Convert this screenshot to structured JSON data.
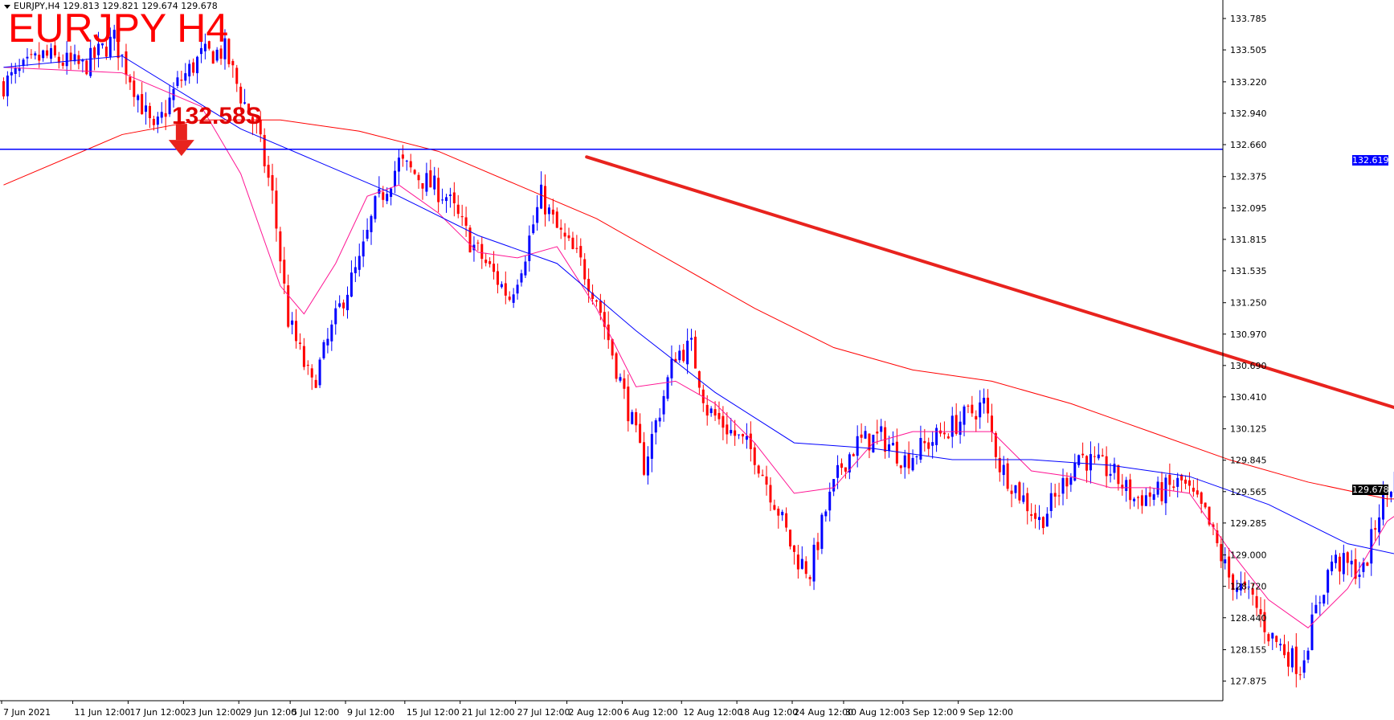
{
  "symbol_info": {
    "text": "EURJPY,H4  129.813 129.821 129.674 129.678"
  },
  "title": "EURJPY H4",
  "annotation": {
    "label": "132.58S",
    "arrow_color": "#e8231e"
  },
  "price_tags": {
    "level": "132.619",
    "last": "129.678"
  },
  "colors": {
    "bull": "#0000ff",
    "bear": "#ff0000",
    "level_line": "#0000ff",
    "ma_fast": "#ff1493",
    "ma_mid": "#0000ff",
    "ma_slow": "#ff0000",
    "trend_arrow": "#e8231e"
  },
  "chart_data": {
    "type": "candlestick",
    "symbol": "EURJPY",
    "timeframe": "H4",
    "ylim": [
      127.7,
      133.95
    ],
    "y_ticks": [
      "133.785",
      "133.505",
      "133.220",
      "132.940",
      "132.660",
      "132.375",
      "132.095",
      "131.815",
      "131.535",
      "131.250",
      "130.970",
      "130.690",
      "130.410",
      "130.125",
      "129.845",
      "129.565",
      "129.285",
      "129.000",
      "128.720",
      "128.440",
      "128.155",
      "127.875"
    ],
    "x_ticks": [
      "7 Jun 2021",
      "11 Jun 12:00",
      "17 Jun 12:00",
      "23 Jun 12:00",
      "29 Jun 12:00",
      "5 Jul 12:00",
      "9 Jul 12:00",
      "15 Jul 12:00",
      "21 Jul 12:00",
      "27 Jul 12:00",
      "2 Aug 12:00",
      "6 Aug 12:00",
      "12 Aug 12:00",
      "18 Aug 12:00",
      "24 Aug 12:00",
      "30 Aug 12:00",
      "3 Sep 12:00",
      "9 Sep 12:00"
    ],
    "horizontal_level": 132.619,
    "sell_level": 132.58,
    "last_price": 129.678,
    "last_candle": {
      "open": 129.813,
      "high": 129.821,
      "low": 129.674,
      "close": 129.678
    },
    "price_path": [
      [
        0,
        133.2
      ],
      [
        10,
        133.45
      ],
      [
        20,
        133.35
      ],
      [
        28,
        133.6
      ],
      [
        34,
        133.1
      ],
      [
        38,
        132.75
      ],
      [
        44,
        133.2
      ],
      [
        50,
        133.45
      ],
      [
        56,
        133.5
      ],
      [
        60,
        133.1
      ],
      [
        64,
        132.8
      ],
      [
        68,
        132.2
      ],
      [
        72,
        131.1
      ],
      [
        78,
        130.5
      ],
      [
        82,
        130.9
      ],
      [
        86,
        131.3
      ],
      [
        90,
        131.6
      ],
      [
        94,
        132.1
      ],
      [
        100,
        132.5
      ],
      [
        106,
        132.35
      ],
      [
        112,
        132.2
      ],
      [
        118,
        131.8
      ],
      [
        124,
        131.5
      ],
      [
        128,
        131.3
      ],
      [
        132,
        131.7
      ],
      [
        136,
        132.2
      ],
      [
        140,
        131.9
      ],
      [
        146,
        131.6
      ],
      [
        150,
        131.3
      ],
      [
        154,
        130.8
      ],
      [
        158,
        130.3
      ],
      [
        162,
        129.8
      ],
      [
        166,
        130.3
      ],
      [
        170,
        130.8
      ],
      [
        174,
        130.85
      ],
      [
        178,
        130.3
      ],
      [
        184,
        130.1
      ],
      [
        190,
        129.9
      ],
      [
        196,
        129.4
      ],
      [
        200,
        129.0
      ],
      [
        204,
        128.85
      ],
      [
        208,
        129.4
      ],
      [
        212,
        129.8
      ],
      [
        216,
        130.0
      ],
      [
        222,
        130.05
      ],
      [
        228,
        129.85
      ],
      [
        232,
        129.95
      ],
      [
        238,
        130.1
      ],
      [
        244,
        130.25
      ],
      [
        248,
        130.35
      ],
      [
        252,
        129.8
      ],
      [
        256,
        129.6
      ],
      [
        262,
        129.3
      ],
      [
        266,
        129.5
      ],
      [
        272,
        129.9
      ],
      [
        276,
        129.8
      ],
      [
        280,
        129.75
      ],
      [
        286,
        129.5
      ],
      [
        292,
        129.55
      ],
      [
        298,
        129.65
      ],
      [
        304,
        129.35
      ],
      [
        310,
        128.8
      ],
      [
        316,
        128.6
      ],
      [
        320,
        128.3
      ],
      [
        324,
        128.15
      ],
      [
        328,
        128.0
      ],
      [
        332,
        128.5
      ],
      [
        336,
        128.95
      ],
      [
        340,
        128.9
      ],
      [
        344,
        128.85
      ],
      [
        348,
        129.4
      ],
      [
        352,
        129.7
      ],
      [
        356,
        129.5
      ],
      [
        360,
        129.65
      ],
      [
        364,
        129.75
      ],
      [
        368,
        130.0
      ],
      [
        372,
        130.3
      ],
      [
        376,
        130.45
      ],
      [
        380,
        130.5
      ],
      [
        384,
        130.6
      ],
      [
        388,
        130.35
      ],
      [
        392,
        130.4
      ],
      [
        396,
        130.5
      ],
      [
        400,
        130.6
      ],
      [
        404,
        130.25
      ],
      [
        408,
        130.15
      ],
      [
        412,
        129.95
      ],
      [
        416,
        129.75
      ],
      [
        418,
        130.2
      ],
      [
        422,
        129.9
      ],
      [
        425,
        129.68
      ]
    ],
    "moving_averages": [
      {
        "name": "MA fast",
        "points": [
          [
            0,
            133.35
          ],
          [
            30,
            133.3
          ],
          [
            50,
            133.0
          ],
          [
            60,
            132.4
          ],
          [
            70,
            131.4
          ],
          [
            76,
            131.15
          ],
          [
            84,
            131.6
          ],
          [
            92,
            132.2
          ],
          [
            100,
            132.3
          ],
          [
            110,
            132.05
          ],
          [
            120,
            131.7
          ],
          [
            130,
            131.65
          ],
          [
            140,
            131.75
          ],
          [
            150,
            131.2
          ],
          [
            160,
            130.5
          ],
          [
            170,
            130.55
          ],
          [
            180,
            130.35
          ],
          [
            190,
            130.0
          ],
          [
            200,
            129.55
          ],
          [
            210,
            129.6
          ],
          [
            220,
            130.0
          ],
          [
            230,
            130.1
          ],
          [
            240,
            130.1
          ],
          [
            250,
            130.1
          ],
          [
            260,
            129.75
          ],
          [
            270,
            129.7
          ],
          [
            280,
            129.6
          ],
          [
            290,
            129.6
          ],
          [
            300,
            129.55
          ],
          [
            310,
            129.05
          ],
          [
            320,
            128.6
          ],
          [
            330,
            128.35
          ],
          [
            340,
            128.7
          ],
          [
            350,
            129.3
          ],
          [
            360,
            129.55
          ],
          [
            370,
            129.85
          ],
          [
            380,
            130.35
          ],
          [
            390,
            130.45
          ],
          [
            400,
            130.5
          ],
          [
            410,
            130.3
          ],
          [
            420,
            130.05
          ]
        ]
      },
      {
        "name": "MA mid",
        "points": [
          [
            0,
            133.35
          ],
          [
            30,
            133.45
          ],
          [
            60,
            132.8
          ],
          [
            80,
            132.5
          ],
          [
            100,
            132.2
          ],
          [
            120,
            131.85
          ],
          [
            140,
            131.6
          ],
          [
            160,
            131.0
          ],
          [
            180,
            130.45
          ],
          [
            200,
            130.0
          ],
          [
            220,
            129.95
          ],
          [
            240,
            129.85
          ],
          [
            260,
            129.85
          ],
          [
            280,
            129.8
          ],
          [
            300,
            129.7
          ],
          [
            320,
            129.45
          ],
          [
            340,
            129.1
          ],
          [
            360,
            128.95
          ],
          [
            375,
            128.95
          ],
          [
            390,
            129.25
          ],
          [
            405,
            129.8
          ],
          [
            415,
            130.0
          ],
          [
            422,
            130.02
          ]
        ]
      },
      {
        "name": "MA slow",
        "points": [
          [
            0,
            132.3
          ],
          [
            30,
            132.75
          ],
          [
            50,
            132.88
          ],
          [
            70,
            132.88
          ],
          [
            90,
            132.78
          ],
          [
            110,
            132.6
          ],
          [
            130,
            132.3
          ],
          [
            150,
            132.0
          ],
          [
            170,
            131.6
          ],
          [
            190,
            131.2
          ],
          [
            210,
            130.85
          ],
          [
            230,
            130.65
          ],
          [
            250,
            130.55
          ],
          [
            270,
            130.35
          ],
          [
            290,
            130.1
          ],
          [
            310,
            129.85
          ],
          [
            330,
            129.65
          ],
          [
            350,
            129.5
          ],
          [
            370,
            129.5
          ],
          [
            390,
            129.55
          ],
          [
            410,
            129.6
          ],
          [
            425,
            129.62
          ]
        ]
      }
    ],
    "trend_line": {
      "from": [
        148,
        132.55
      ],
      "to": [
        500,
        128.7
      ]
    }
  }
}
